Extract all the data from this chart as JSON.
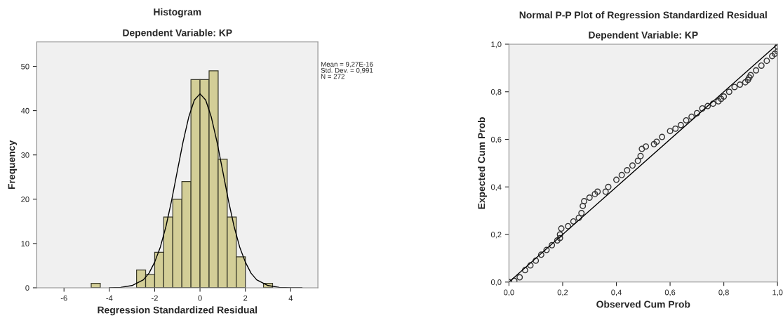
{
  "chart_data": [
    {
      "type": "histogram",
      "title": "Histogram",
      "subtitle": "Dependent Variable: KP",
      "xlabel": "Regression Standardized Residual",
      "ylabel": "Frequency",
      "bins": [
        -4.8,
        -4.4,
        -4.0,
        -3.6,
        -3.2,
        -2.8,
        -2.4,
        -2.0,
        -1.6,
        -1.2,
        -0.8,
        -0.4,
        0,
        0.4,
        0.8,
        1.2,
        1.6,
        2.0,
        2.4,
        2.8,
        3.2
      ],
      "values": [
        1,
        0,
        0,
        0,
        0,
        4,
        3,
        8,
        16,
        20,
        24,
        47,
        47,
        49,
        29,
        16,
        7,
        0,
        0,
        1
      ],
      "color": "#d3ce97",
      "series": [
        {
          "type": "line",
          "color": "#000000",
          "x": [
            -4,
            -3.5,
            -3,
            -2.5,
            -2.25,
            -2,
            -1.75,
            -1.5,
            -1.25,
            -1,
            -0.75,
            -0.5,
            -0.25,
            0,
            0.25,
            0.5,
            0.75,
            1,
            1.25,
            1.5,
            1.75,
            2,
            2.25,
            2.5,
            3,
            3.5,
            4,
            4.5
          ],
          "values": [
            0.0,
            0.1,
            0.5,
            1.8,
            3.3,
            5.8,
            9.2,
            13.9,
            19.8,
            26.4,
            32.9,
            38.5,
            42.4,
            43.8,
            42.4,
            38.5,
            32.9,
            26.4,
            19.8,
            13.9,
            9.2,
            5.8,
            3.3,
            1.8,
            0.5,
            0.1,
            0.0,
            0.0
          ]
        }
      ],
      "xlim": [
        -7.2,
        5.2
      ],
      "ylim": [
        0,
        55.5
      ],
      "xticks": [
        -6,
        -4,
        -2,
        0,
        2,
        4
      ],
      "yticks": [
        0,
        10,
        20,
        30,
        40,
        50
      ],
      "grid": false,
      "annotations": [
        "Mean = 9,27E-16\nStd. Dev. = 0,991\nN = 272"
      ]
    },
    {
      "type": "scatter",
      "title": "Normal P-P Plot of Regression Standardized Residual",
      "subtitle": "Dependent Variable: KP",
      "xlabel": "Observed Cum Prob",
      "ylabel": "Expected Cum Prob",
      "series": [
        {
          "type": "scatter",
          "color": "#333333",
          "marker": "circle",
          "x": [
            0.0,
            0.02,
            0.04,
            0.06,
            0.08,
            0.1,
            0.12,
            0.14,
            0.16,
            0.18,
            0.19,
            0.19,
            0.195,
            0.22,
            0.24,
            0.26,
            0.27,
            0.275,
            0.28,
            0.3,
            0.32,
            0.33,
            0.36,
            0.37,
            0.4,
            0.42,
            0.44,
            0.46,
            0.48,
            0.49,
            0.495,
            0.51,
            0.54,
            0.55,
            0.57,
            0.6,
            0.62,
            0.64,
            0.66,
            0.68,
            0.7,
            0.72,
            0.74,
            0.76,
            0.78,
            0.79,
            0.8,
            0.82,
            0.84,
            0.86,
            0.88,
            0.89,
            0.895,
            0.9,
            0.92,
            0.94,
            0.96,
            0.98,
            0.99,
            1.0,
            1.0
          ],
          "values": [
            0.0,
            0.005,
            0.02,
            0.05,
            0.07,
            0.09,
            0.115,
            0.135,
            0.155,
            0.175,
            0.185,
            0.2,
            0.225,
            0.235,
            0.255,
            0.27,
            0.29,
            0.32,
            0.34,
            0.355,
            0.37,
            0.38,
            0.38,
            0.4,
            0.43,
            0.45,
            0.47,
            0.49,
            0.51,
            0.53,
            0.56,
            0.57,
            0.58,
            0.59,
            0.61,
            0.635,
            0.645,
            0.66,
            0.68,
            0.695,
            0.71,
            0.73,
            0.74,
            0.75,
            0.76,
            0.77,
            0.78,
            0.8,
            0.82,
            0.83,
            0.84,
            0.85,
            0.86,
            0.87,
            0.89,
            0.91,
            0.93,
            0.95,
            0.96,
            0.97,
            0.99
          ]
        },
        {
          "type": "line",
          "color": "#000000",
          "x": [
            0,
            1
          ],
          "values": [
            0,
            1
          ]
        }
      ],
      "xlim": [
        0,
        1
      ],
      "ylim": [
        0,
        1
      ],
      "xticks": [
        {
          "value": 0,
          "label": "0,0"
        },
        {
          "value": 0.2,
          "label": "0,2"
        },
        {
          "value": 0.4,
          "label": "0,4"
        },
        {
          "value": 0.6,
          "label": "0,6"
        },
        {
          "value": 0.8,
          "label": "0,8"
        },
        {
          "value": 1,
          "label": "1,0"
        }
      ],
      "yticks": [
        {
          "value": 0,
          "label": "0,0"
        },
        {
          "value": 0.2,
          "label": "0,2"
        },
        {
          "value": 0.4,
          "label": "0,4"
        },
        {
          "value": 0.6,
          "label": "0,6"
        },
        {
          "value": 0.8,
          "label": "0,8"
        },
        {
          "value": 1,
          "label": "1,0"
        }
      ],
      "grid": false
    }
  ]
}
